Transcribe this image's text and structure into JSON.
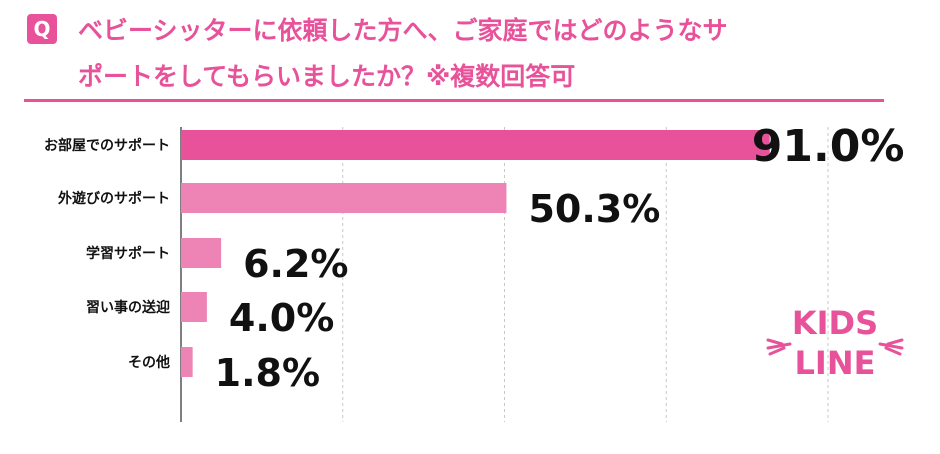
{
  "badge": "Q",
  "question_line1": "ベビーシッターに依頼した方へ、ご家庭ではどのようなサ",
  "question_line2": "ポートをしてもらいましたか？※複数回答可",
  "logo": {
    "line1": "KIDS",
    "line2": "LINE"
  },
  "colors": {
    "accent": "#e8529a",
    "primary_bar": "#e8529a",
    "secondary_bar": "#ee84b5"
  },
  "chart_data": {
    "type": "bar",
    "orientation": "horizontal",
    "categories": [
      "お部屋でのサポート",
      "外遊びのサポート",
      "学習サポート",
      "習い事の送迎",
      "その他"
    ],
    "values": [
      91.0,
      50.3,
      6.2,
      4.0,
      1.8
    ],
    "value_labels": [
      "91.0%",
      "50.3%",
      "6.2%",
      "4.0%",
      "1.8%"
    ],
    "unit": "%",
    "xlim": [
      0,
      100
    ],
    "grid": "vertical dashed",
    "legend": "none"
  }
}
